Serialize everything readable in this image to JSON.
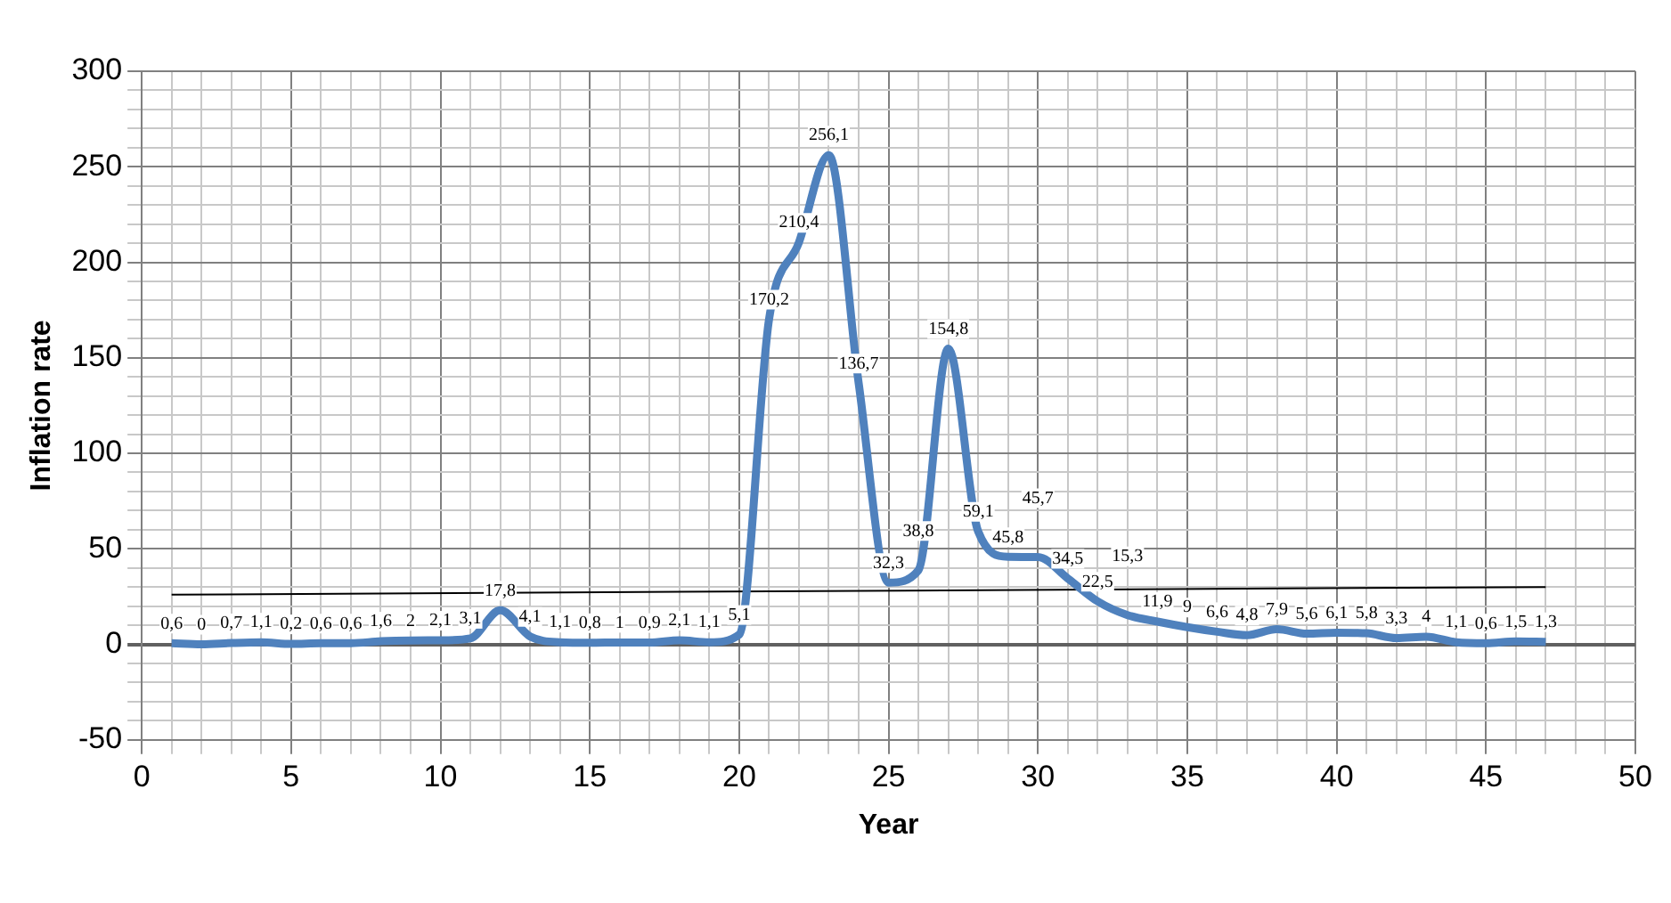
{
  "chart_data": {
    "type": "line",
    "xlabel": "Year",
    "ylabel": "Inflation rate",
    "grid": true,
    "legend": false,
    "marker": "none",
    "xlim": [
      0,
      50
    ],
    "ylim": [
      -50,
      300
    ],
    "xticks": [
      0,
      {
        "value": 1,
        "label": null
      },
      {
        "value": 2,
        "label": null
      },
      {
        "value": 3,
        "label": null
      },
      {
        "value": 4,
        "label": null
      },
      5,
      {
        "value": 6,
        "label": null
      },
      {
        "value": 7,
        "label": null
      },
      {
        "value": 8,
        "label": null
      },
      {
        "value": 9,
        "label": null
      },
      10,
      {
        "value": 11,
        "label": null
      },
      {
        "value": 12,
        "label": null
      },
      {
        "value": 13,
        "label": null
      },
      {
        "value": 14,
        "label": null
      },
      15,
      {
        "value": 16,
        "label": null
      },
      {
        "value": 17,
        "label": null
      },
      {
        "value": 18,
        "label": null
      },
      {
        "value": 19,
        "label": null
      },
      20,
      {
        "value": 21,
        "label": null
      },
      {
        "value": 22,
        "label": null
      },
      {
        "value": 23,
        "label": null
      },
      {
        "value": 24,
        "label": null
      },
      25,
      {
        "value": 26,
        "label": null
      },
      {
        "value": 27,
        "label": null
      },
      {
        "value": 28,
        "label": null
      },
      {
        "value": 29,
        "label": null
      },
      30,
      {
        "value": 31,
        "label": null
      },
      {
        "value": 32,
        "label": null
      },
      {
        "value": 33,
        "label": null
      },
      {
        "value": 34,
        "label": null
      },
      35,
      {
        "value": 36,
        "label": null
      },
      {
        "value": 37,
        "label": null
      },
      {
        "value": 38,
        "label": null
      },
      {
        "value": 39,
        "label": null
      },
      40,
      {
        "value": 41,
        "label": null
      },
      {
        "value": 42,
        "label": null
      },
      {
        "value": 43,
        "label": null
      },
      {
        "value": 44,
        "label": null
      },
      45,
      {
        "value": 46,
        "label": null
      },
      {
        "value": 47,
        "label": null
      },
      {
        "value": 48,
        "label": null
      },
      {
        "value": 49,
        "label": null
      },
      50
    ],
    "yticks": [
      -50,
      {
        "value": -40,
        "label": null
      },
      {
        "value": -30,
        "label": null
      },
      {
        "value": -20,
        "label": null
      },
      {
        "value": -10,
        "label": null
      },
      0,
      {
        "value": 10,
        "label": null
      },
      {
        "value": 20,
        "label": null
      },
      {
        "value": 30,
        "label": null
      },
      {
        "value": 40,
        "label": null
      },
      50,
      {
        "value": 60,
        "label": null
      },
      {
        "value": 70,
        "label": null
      },
      {
        "value": 80,
        "label": null
      },
      {
        "value": 90,
        "label": null
      },
      100,
      {
        "value": 110,
        "label": null
      },
      {
        "value": 120,
        "label": null
      },
      {
        "value": 130,
        "label": null
      },
      {
        "value": 140,
        "label": null
      },
      150,
      {
        "value": 160,
        "label": null
      },
      {
        "value": 170,
        "label": null
      },
      {
        "value": 180,
        "label": null
      },
      {
        "value": 190,
        "label": null
      },
      200,
      {
        "value": 210,
        "label": null
      },
      {
        "value": 220,
        "label": null
      },
      {
        "value": 230,
        "label": null
      },
      {
        "value": 240,
        "label": null
      },
      250,
      {
        "value": 260,
        "label": null
      },
      {
        "value": 270,
        "label": null
      },
      {
        "value": 280,
        "label": null
      },
      {
        "value": 290,
        "label": null
      },
      300
    ],
    "series": [
      {
        "color": "#4f81bd",
        "x": [
          1,
          2,
          3,
          4,
          5,
          6,
          7,
          8,
          9,
          10,
          11,
          12,
          13,
          14,
          15,
          16,
          17,
          18,
          19,
          20,
          21,
          22,
          23,
          24,
          25,
          26,
          27,
          28,
          29,
          30,
          31,
          32,
          33,
          34,
          35,
          36,
          37,
          38,
          39,
          40,
          41,
          42,
          43,
          44,
          45,
          46,
          47
        ],
        "values": [
          0.6,
          0,
          0.7,
          1.1,
          0.2,
          0.6,
          0.6,
          1.6,
          2,
          2.1,
          3.1,
          17.8,
          4.1,
          1.1,
          0.8,
          1,
          0.9,
          2.1,
          1.1,
          5.1,
          170.2,
          210.4,
          256.1,
          136.7,
          32.3,
          38.8,
          154.8,
          59.1,
          45.8,
          45.7,
          34.5,
          22.5,
          15.3,
          11.9,
          9,
          6.6,
          4.8,
          7.9,
          5.6,
          6.1,
          5.8,
          3.3,
          4,
          1.1,
          0.6,
          1.5,
          1.3
        ],
        "value_labels": [
          "0,6",
          "0",
          "0,7",
          "1,1",
          "0,2",
          "0,6",
          "0,6",
          "1,6",
          "2",
          "2,1",
          "3,1",
          "17,8",
          "4,1",
          "1,1",
          "0,8",
          "1",
          "0,9",
          "2,1",
          "1,1",
          "5,1",
          "170,2",
          "210,4",
          "256,1",
          "136,7",
          "32,3",
          "38,8",
          "154,8",
          "59,1",
          "45,8",
          "45,7",
          "34,5",
          "22,5",
          "15,3",
          "11,9",
          "9",
          "6,6",
          "4,8",
          "7,9",
          "5,6",
          "6,1",
          "5,8",
          "3,3",
          "4",
          "1,1",
          "0,6",
          "1,5",
          "1,3"
        ]
      },
      {
        "type": "line",
        "color": "#000000",
        "x": [
          1,
          47
        ],
        "values": [
          26,
          30
        ]
      }
    ]
  }
}
